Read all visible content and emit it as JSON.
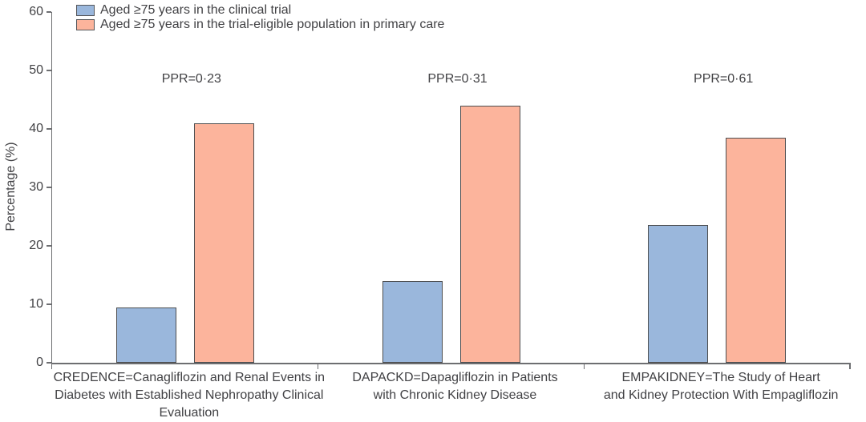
{
  "chart_data": {
    "type": "bar",
    "title": "",
    "xlabel": "",
    "ylabel": "Percentage (%)",
    "ylim": [
      0,
      60
    ],
    "yticks": [
      0,
      10,
      20,
      30,
      40,
      50,
      60
    ],
    "grid": false,
    "legend_position": "top-left",
    "legend": [
      {
        "label": "Aged ≥75 years in the clinical trial",
        "color": "#9ab7dc"
      },
      {
        "label": "Aged ≥75 years in the trial-eligible population in primary care",
        "color": "#fcb49c"
      }
    ],
    "categories": [
      {
        "lines": [
          "CREDENCE=Canagliflozin and Renal Events in",
          "Diabetes with Established Nephropathy Clinical",
          "Evaluation"
        ]
      },
      {
        "lines": [
          "DAPACKD=Dapagliflozin in Patients",
          "with Chronic Kidney Disease"
        ]
      },
      {
        "lines": [
          "EMPAKIDNEY=The Study of Heart",
          "and Kidney Protection With Empagliflozin"
        ]
      }
    ],
    "annotations": [
      "PPR=0·23",
      "PPR=0·31",
      "PPR=0·61"
    ],
    "series": [
      {
        "name": "Aged ≥75 years in the clinical trial",
        "color": "#9ab7dc",
        "values": [
          9.5,
          14,
          23.5
        ]
      },
      {
        "name": "Aged ≥75 years in the trial-eligible population in primary care",
        "color": "#fcb49c",
        "values": [
          41,
          44,
          38.5
        ]
      }
    ],
    "colors": {
      "bar_border": "#4d4e50",
      "axis": "#6d6e71",
      "text": "#414144"
    }
  }
}
